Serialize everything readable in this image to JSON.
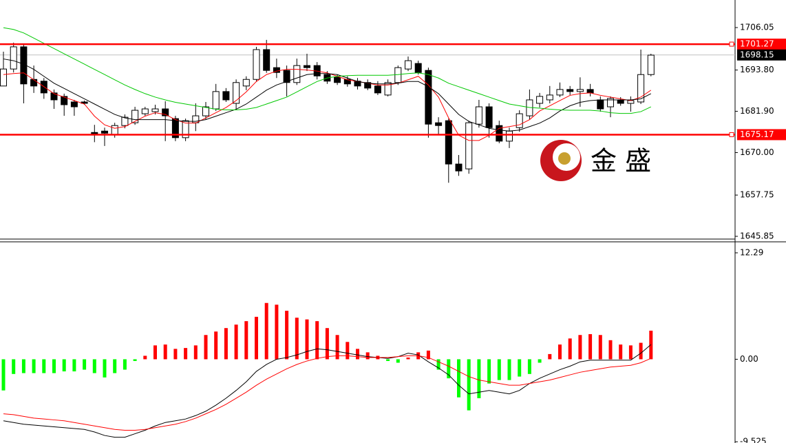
{
  "chart_data": [
    {
      "type": "candlestick",
      "watermark": "金 盛",
      "ylim": [
        1645.06,
        1714.0
      ],
      "yticks": [
        1706.05,
        {
          "value": 1693.8,
          "label": "1693.80"
        },
        {
          "value": 1681.9,
          "label": "1681.90"
        },
        {
          "value": 1670.0,
          "label": "1670.00"
        },
        1657.75,
        1645.85
      ],
      "open": [
        1689.2,
        1694.1,
        1700.5,
        1691.1,
        1690.6,
        1687.2,
        1686.2,
        1684.6,
        1684.6,
        1675.8,
        1676.2,
        1675.2,
        1677.8,
        1678.6,
        1681.2,
        1681.8,
        1682.6,
        1679.8,
        1674.3,
        1678.6,
        1680.6,
        1682.6,
        1687.6,
        1684.2,
        1689.2,
        1691.1,
        1699.7,
        1694.5,
        1693.7,
        1690.2,
        1695.1,
        1695.1,
        1692.5,
        1691.7,
        1691.1,
        1690.6,
        1690.2,
        1689.2,
        1686.6,
        1690.2,
        1694.1,
        1695.7,
        1693.7,
        1678.6,
        1679.2,
        1666.7,
        1665.3,
        1678.2,
        1683.2,
        1677.8,
        1673.3,
        1677.2,
        1680.6,
        1684.2,
        1685.2,
        1686.6,
        1688.2,
        1687.6,
        1688.2,
        1685.2,
        1683.2,
        1685.2,
        1684.2,
        1684.6,
        1692.5
      ],
      "high": [
        1699.1,
        1701.7,
        1701.1,
        1695.1,
        1691.5,
        1688.2,
        1687.0,
        1685.2,
        1685.0,
        1678.0,
        1677.2,
        1678.6,
        1681.0,
        1683.2,
        1683.2,
        1683.8,
        1684.8,
        1680.6,
        1679.8,
        1684.2,
        1684.6,
        1689.8,
        1688.6,
        1691.1,
        1692.0,
        1700.5,
        1702.5,
        1697.1,
        1695.1,
        1697.1,
        1698.5,
        1696.1,
        1693.5,
        1692.5,
        1692.0,
        1691.5,
        1691.1,
        1690.6,
        1691.1,
        1695.1,
        1697.7,
        1696.5,
        1694.5,
        1680.2,
        1679.8,
        1669.3,
        1679.2,
        1685.2,
        1684.2,
        1679.2,
        1677.2,
        1682.2,
        1688.2,
        1687.2,
        1689.2,
        1690.2,
        1689.2,
        1691.7,
        1689.8,
        1686.2,
        1686.2,
        1686.0,
        1686.2,
        1699.7,
        1698.5
      ],
      "low": [
        1689.2,
        1693.1,
        1684.2,
        1687.2,
        1685.5,
        1682.6,
        1680.6,
        1680.6,
        1683.8,
        1673.0,
        1671.9,
        1674.3,
        1677.0,
        1678.0,
        1680.6,
        1681.0,
        1673.3,
        1673.3,
        1673.3,
        1676.2,
        1679.6,
        1682.0,
        1684.6,
        1682.6,
        1688.0,
        1690.6,
        1693.0,
        1691.5,
        1686.2,
        1689.5,
        1693.5,
        1691.1,
        1689.8,
        1689.5,
        1689.0,
        1688.2,
        1688.0,
        1686.6,
        1686.2,
        1689.5,
        1693.5,
        1692.5,
        1674.3,
        1675.2,
        1661.3,
        1663.3,
        1663.9,
        1677.2,
        1674.3,
        1672.7,
        1671.3,
        1676.0,
        1679.6,
        1683.0,
        1684.2,
        1686.0,
        1686.6,
        1683.2,
        1686.2,
        1681.8,
        1680.2,
        1683.5,
        1681.8,
        1684.0,
        1692.0
      ],
      "close": [
        1694.1,
        1700.5,
        1689.8,
        1689.2,
        1687.2,
        1685.2,
        1683.8,
        1683.2,
        1684.2,
        1675.2,
        1675.6,
        1677.8,
        1680.2,
        1682.2,
        1682.6,
        1682.6,
        1680.6,
        1674.3,
        1679.2,
        1680.6,
        1683.2,
        1687.6,
        1685.2,
        1690.2,
        1691.1,
        1699.7,
        1693.7,
        1693.1,
        1690.2,
        1695.1,
        1694.5,
        1692.1,
        1690.6,
        1690.2,
        1689.8,
        1689.2,
        1688.6,
        1687.2,
        1690.2,
        1694.5,
        1696.5,
        1693.1,
        1678.2,
        1677.8,
        1666.7,
        1664.7,
        1678.6,
        1683.2,
        1677.2,
        1673.3,
        1676.2,
        1681.2,
        1685.2,
        1686.2,
        1686.6,
        1688.2,
        1687.6,
        1688.2,
        1687.2,
        1682.6,
        1685.6,
        1684.2,
        1685.0,
        1692.5,
        1698.1
      ],
      "lines": [
        {
          "color": "#ff0000",
          "values": [
            1692.5,
            1692.8,
            1693,
            1691,
            1689,
            1687,
            1686,
            1685,
            1684,
            1680.5,
            1678,
            1677,
            1677.5,
            1679,
            1680.5,
            1681.5,
            1681,
            1679.5,
            1678.5,
            1678.5,
            1680,
            1681.5,
            1683,
            1685,
            1687.5,
            1690.5,
            1692.5,
            1693.5,
            1694,
            1694,
            1693.8,
            1693.5,
            1693,
            1692,
            1691,
            1690.5,
            1690,
            1689.5,
            1689.5,
            1690,
            1691,
            1692,
            1689.5,
            1686,
            1680,
            1675,
            1673.5,
            1673.5,
            1675,
            1677,
            1677.5,
            1678,
            1679.5,
            1682,
            1683.5,
            1685,
            1686.5,
            1687,
            1687.2,
            1686.5,
            1686,
            1685.5,
            1685,
            1686,
            1688
          ]
        },
        {
          "color": "#000000",
          "values": [
            1697,
            1696.5,
            1695.5,
            1694,
            1692,
            1690,
            1688.5,
            1687,
            1685.5,
            1684,
            1682.5,
            1681,
            1680,
            1679.5,
            1679.5,
            1679.5,
            1679.5,
            1679.2,
            1679,
            1679,
            1679.5,
            1680.5,
            1681.5,
            1682.5,
            1684,
            1686,
            1688,
            1689.5,
            1690.5,
            1691.5,
            1692.5,
            1692.8,
            1692.8,
            1692.5,
            1691.5,
            1690.5,
            1690,
            1689.8,
            1689.8,
            1690,
            1690.5,
            1690.5,
            1689,
            1687,
            1684,
            1681,
            1679,
            1678,
            1677,
            1676.5,
            1676.2,
            1676.5,
            1677.5,
            1678.5,
            1680,
            1682,
            1683.5,
            1684.5,
            1685,
            1685.2,
            1685.2,
            1685.2,
            1685.2,
            1685.5,
            1687
          ]
        },
        {
          "color": "#00c800",
          "values": [
            1706,
            1705.5,
            1704.5,
            1703,
            1701.5,
            1700,
            1698.5,
            1697,
            1695.5,
            1694,
            1692.5,
            1691,
            1689.5,
            1688.2,
            1687,
            1686,
            1685.2,
            1684.5,
            1684,
            1683.5,
            1683,
            1682.5,
            1682.3,
            1682.3,
            1682.5,
            1683,
            1684,
            1685,
            1686,
            1687.5,
            1689,
            1690.5,
            1691.5,
            1692,
            1692.2,
            1692.3,
            1692.3,
            1692.3,
            1692.3,
            1692.5,
            1692.8,
            1693,
            1692.5,
            1691.5,
            1690,
            1689,
            1688,
            1687,
            1686,
            1685,
            1684,
            1683.5,
            1683,
            1682.8,
            1682.5,
            1682.3,
            1682.2,
            1682.2,
            1682.2,
            1682,
            1681.5,
            1681.3,
            1681.3,
            1681.8,
            1683.2
          ]
        }
      ],
      "hlines": [
        1701.27,
        1675.17
      ],
      "hline_color": "#ff0000",
      "current_price": 1698.15,
      "current_color": "#c0c0c0"
    },
    {
      "type": "macd",
      "ylim": [
        -9.67,
        13.56
      ],
      "yticks": [
        12.29,
        {
          "value": 0,
          "label": "0.00"
        },
        -9.525
      ],
      "positive_color": "#ff0000",
      "negative_color": "#00ff00",
      "values": [
        -3.6,
        -1.7,
        -1.6,
        -1.6,
        -1.6,
        -1.6,
        -1.4,
        -1.4,
        -1.2,
        -1.6,
        -2.1,
        -1.6,
        -1.2,
        -0.2,
        0.4,
        1.6,
        1.7,
        1.2,
        1.3,
        1.6,
        2.8,
        3.2,
        3.6,
        4.0,
        4.4,
        4.9,
        6.5,
        6.3,
        5.6,
        4.8,
        4.6,
        4.4,
        3.6,
        2.8,
        2.0,
        1.2,
        0.8,
        0.4,
        -0.2,
        -0.4,
        0.2,
        0.8,
        1.0,
        -1.2,
        -2.2,
        -4.4,
        -5.9,
        -4.5,
        -2.8,
        -2.4,
        -2.4,
        -2.0,
        -1.7,
        -0.4,
        0.6,
        1.7,
        2.4,
        2.8,
        2.9,
        2.8,
        2.2,
        1.7,
        1.6,
        1.9,
        3.3
      ],
      "lines": [
        {
          "color": "#000000",
          "values": [
            -7.1,
            -7.3,
            -7.5,
            -7.6,
            -7.7,
            -7.8,
            -7.9,
            -8.0,
            -8.1,
            -8.4,
            -8.8,
            -9.0,
            -9.0,
            -8.6,
            -8.2,
            -7.7,
            -7.3,
            -7.1,
            -6.9,
            -6.5,
            -6.0,
            -5.3,
            -4.5,
            -3.6,
            -2.6,
            -1.4,
            -0.6,
            0.0,
            0.2,
            0.5,
            0.9,
            1.2,
            1.1,
            0.9,
            0.7,
            0.5,
            0.3,
            0.2,
            0.1,
            0.3,
            0.7,
            0.5,
            -0.3,
            -1.0,
            -1.8,
            -3.0,
            -4.0,
            -3.8,
            -3.6,
            -3.8,
            -4.0,
            -3.6,
            -2.8,
            -2.2,
            -1.7,
            -1.2,
            -0.8,
            -0.3,
            -0.1,
            -0.1,
            -0.1,
            -0.1,
            -0.1,
            0.7,
            1.7
          ]
        },
        {
          "color": "#ff0000",
          "values": [
            -6.3,
            -6.4,
            -6.6,
            -6.8,
            -6.9,
            -7.0,
            -7.1,
            -7.3,
            -7.5,
            -7.7,
            -7.9,
            -8.1,
            -8.2,
            -8.2,
            -8.1,
            -7.9,
            -7.7,
            -7.5,
            -7.2,
            -6.8,
            -6.3,
            -5.8,
            -5.2,
            -4.5,
            -3.8,
            -3.0,
            -2.3,
            -1.7,
            -1.1,
            -0.6,
            -0.2,
            0.1,
            0.3,
            0.4,
            0.4,
            0.3,
            0.2,
            0.2,
            0.2,
            0.3,
            0.4,
            0.4,
            0.2,
            -0.3,
            -0.8,
            -1.4,
            -2.0,
            -2.4,
            -2.6,
            -2.8,
            -3.0,
            -3.0,
            -2.8,
            -2.6,
            -2.4,
            -2.1,
            -1.8,
            -1.5,
            -1.3,
            -1.1,
            -0.9,
            -0.8,
            -0.7,
            -0.4,
            0.1
          ]
        }
      ]
    }
  ]
}
